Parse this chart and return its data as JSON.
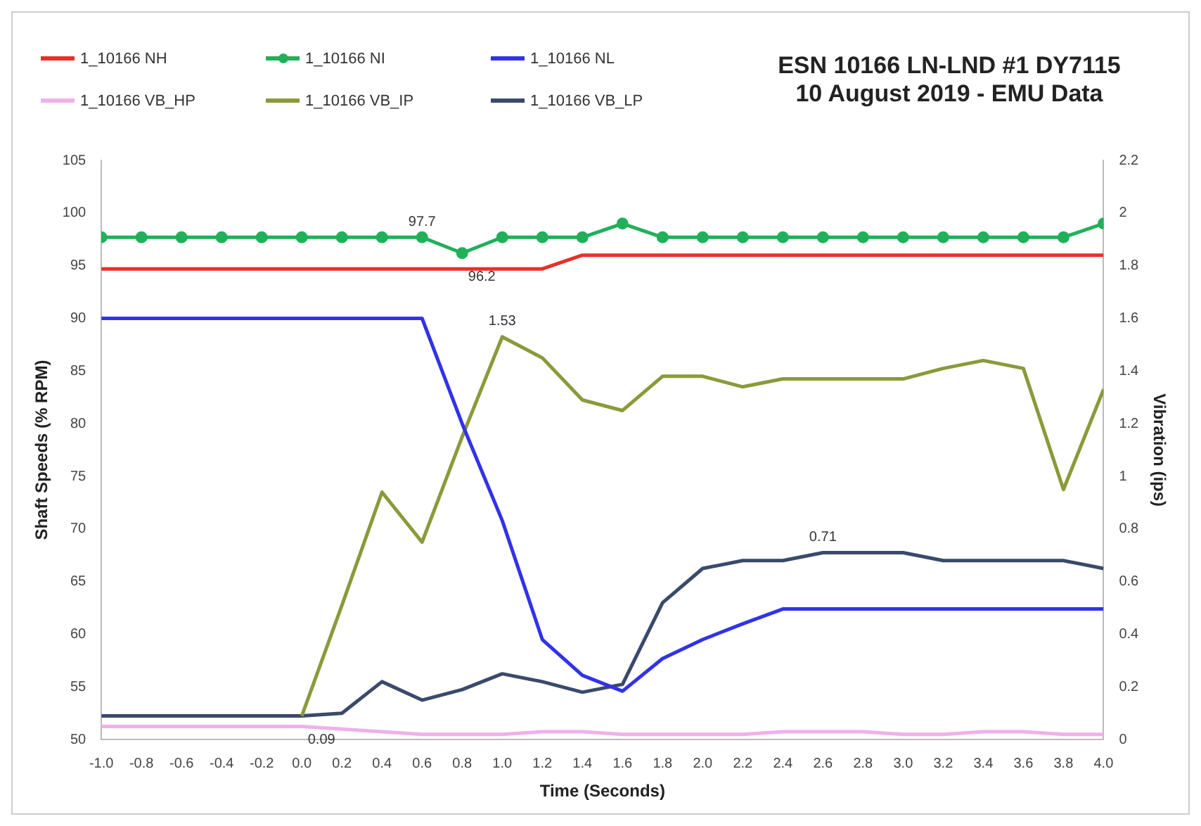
{
  "chart_data": {
    "type": "line",
    "title": "ESN 10166 LN-LND #1 DY7115\n10 August 2019 - EMU Data",
    "xlabel": "Time (Seconds)",
    "ylabel": "Shaft Speeds (% RPM)",
    "y2label": "Vibration (ips)",
    "x": [
      -1.0,
      -0.8,
      -0.6,
      -0.4,
      -0.2,
      0.0,
      0.2,
      0.4,
      0.6,
      0.8,
      1.0,
      1.2,
      1.4,
      1.6,
      1.8,
      2.0,
      2.2,
      2.4,
      2.6,
      2.8,
      3.0,
      3.2,
      3.4,
      3.6,
      3.8,
      4.0
    ],
    "series": [
      {
        "name": "1_10166 NH",
        "color": "#e8302a",
        "values": [
          94.7,
          94.7,
          94.7,
          94.7,
          94.7,
          94.7,
          94.7,
          94.7,
          94.7,
          94.7,
          94.7,
          94.7,
          96.0,
          96.0,
          96.0,
          96.0,
          96.0,
          96.0,
          96.0,
          96.0,
          96.0,
          96.0,
          96.0,
          96.0,
          96.0,
          96.0
        ]
      },
      {
        "name": "1_10166 NI",
        "color": "#21b05a",
        "marker": "circle",
        "values": [
          97.7,
          97.7,
          97.7,
          97.7,
          97.7,
          97.7,
          97.7,
          97.7,
          97.7,
          96.2,
          97.7,
          97.7,
          97.7,
          99.0,
          97.7,
          97.7,
          97.7,
          97.7,
          97.7,
          97.7,
          97.7,
          97.7,
          97.7,
          97.7,
          97.7,
          99.0
        ],
        "value_labels": [
          null,
          null,
          null,
          null,
          null,
          null,
          null,
          null,
          "97.7",
          "96.2",
          null,
          null,
          null,
          null,
          null,
          null,
          null,
          null,
          null,
          null,
          null,
          null,
          null,
          null,
          null,
          null
        ]
      },
      {
        "name": "1_10166 NL",
        "color": "#3232e6",
        "values": [
          90,
          90,
          90,
          90,
          90,
          90,
          90,
          90,
          90,
          80,
          70.8,
          59.5,
          56.1,
          54.6,
          57.7,
          59.5,
          61.0,
          62.4,
          62.4,
          62.4,
          62.4,
          62.4,
          62.4,
          62.4,
          62.4,
          62.4
        ]
      },
      {
        "name": "1_10166 VB_HP",
        "color": "#f0b0e8",
        "axis": "y2",
        "values": [
          0.05,
          0.05,
          0.05,
          0.05,
          0.05,
          0.05,
          0.04,
          0.03,
          0.02,
          0.02,
          0.02,
          0.03,
          0.03,
          0.02,
          0.02,
          0.02,
          0.02,
          0.03,
          0.03,
          0.03,
          0.02,
          0.02,
          0.03,
          0.03,
          0.02,
          0.02
        ]
      },
      {
        "name": "1_10166 VB_IP",
        "color": "#8a9a3a",
        "axis": "y2",
        "values": [
          null,
          null,
          null,
          null,
          null,
          0.09,
          0.51,
          0.94,
          0.75,
          1.15,
          1.53,
          1.45,
          1.29,
          1.25,
          1.38,
          1.38,
          1.34,
          1.37,
          1.37,
          1.37,
          1.37,
          1.41,
          1.44,
          1.41,
          0.95,
          1.33
        ],
        "value_labels": [
          null,
          null,
          null,
          null,
          null,
          "0.09",
          null,
          null,
          null,
          null,
          "1.53",
          null,
          null,
          null,
          null,
          null,
          null,
          null,
          null,
          null,
          null,
          null,
          null,
          null,
          null,
          null
        ]
      },
      {
        "name": "1_10166 VB_LP",
        "color": "#3a4a6a",
        "axis": "y2",
        "values": [
          0.09,
          0.09,
          0.09,
          0.09,
          0.09,
          0.09,
          0.1,
          0.22,
          0.15,
          0.19,
          0.25,
          0.22,
          0.18,
          0.21,
          0.52,
          0.65,
          0.68,
          0.68,
          0.71,
          0.71,
          0.71,
          0.68,
          0.68,
          0.68,
          0.68,
          0.65
        ],
        "value_labels": [
          null,
          null,
          null,
          null,
          null,
          null,
          null,
          null,
          null,
          null,
          null,
          null,
          null,
          null,
          null,
          null,
          null,
          null,
          "0.71",
          null,
          null,
          null,
          null,
          null,
          null,
          null
        ]
      }
    ],
    "marker": "none",
    "legend": "top left",
    "xlim": [
      -1.0,
      4.0
    ],
    "xticks": [
      {
        "value": -1.0,
        "label": "-1.0"
      },
      {
        "value": -0.8,
        "label": "-0.8"
      },
      {
        "value": -0.6,
        "label": "-0.6"
      },
      {
        "value": -0.4,
        "label": "-0.4"
      },
      {
        "value": -0.2,
        "label": "-0.2"
      },
      {
        "value": 0.0,
        "label": "0.0"
      },
      {
        "value": 0.2,
        "label": "0.2"
      },
      {
        "value": 0.4,
        "label": "0.4"
      },
      {
        "value": 0.6,
        "label": "0.6"
      },
      {
        "value": 0.8,
        "label": "0.8"
      },
      {
        "value": 1.0,
        "label": "1.0"
      },
      {
        "value": 1.2,
        "label": "1.2"
      },
      {
        "value": 1.4,
        "label": "1.4"
      },
      {
        "value": 1.6,
        "label": "1.6"
      },
      {
        "value": 1.8,
        "label": "1.8"
      },
      {
        "value": 2.0,
        "label": "2.0"
      },
      {
        "value": 2.2,
        "label": "2.2"
      },
      {
        "value": 2.4,
        "label": "2.4"
      },
      {
        "value": 2.6,
        "label": "2.6"
      },
      {
        "value": 2.8,
        "label": "2.8"
      },
      {
        "value": 3.0,
        "label": "3.0"
      },
      {
        "value": 3.2,
        "label": "3.2"
      },
      {
        "value": 3.4,
        "label": "3.4"
      },
      {
        "value": 3.6,
        "label": "3.6"
      },
      {
        "value": 3.8,
        "label": "3.8"
      },
      {
        "value": 4.0,
        "label": "4.0"
      }
    ],
    "ylim": [
      50,
      105
    ],
    "yticks": [
      50,
      55,
      60,
      65,
      70,
      75,
      80,
      85,
      90,
      95,
      100,
      105
    ],
    "y2lim": [
      0,
      2.2
    ],
    "y2ticks": [
      0,
      0.2,
      0.4,
      0.6,
      0.8,
      1,
      1.2,
      1.4,
      1.6,
      1.8,
      2,
      2.2
    ]
  }
}
